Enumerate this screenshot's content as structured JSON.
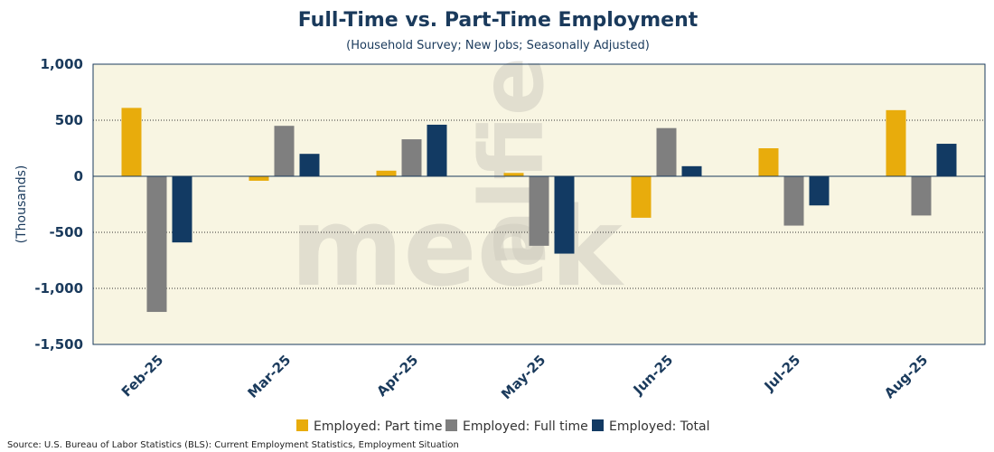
{
  "watermark": "alfie meek",
  "chart_data": {
    "type": "bar",
    "title": "Full-Time vs. Part-Time Employment",
    "subtitle": "(Household Survey; New Jobs; Seasonally Adjusted)",
    "xlabel": "",
    "ylabel": "(Thousands)",
    "ylim": [
      -1500,
      1000
    ],
    "yticks": [
      1000,
      500,
      0,
      -500,
      -1000,
      -1500
    ],
    "ytick_labels": [
      "1,000",
      "500",
      "0",
      "-500",
      "-1,000",
      "-1,500"
    ],
    "categories": [
      "Feb-25",
      "Mar-25",
      "Apr-25",
      "May-25",
      "Jun-25",
      "Jul-25",
      "Aug-25"
    ],
    "series": [
      {
        "name": "Employed: Part time",
        "color": "#e8ac0c",
        "values": [
          610,
          -40,
          50,
          30,
          -370,
          250,
          590
        ]
      },
      {
        "name": "Employed: Full time",
        "color": "#7f7f7f",
        "values": [
          -1210,
          450,
          330,
          -620,
          430,
          -440,
          -350
        ]
      },
      {
        "name": "Employed: Total",
        "color": "#123a63",
        "values": [
          -590,
          200,
          460,
          -690,
          90,
          -260,
          290
        ]
      }
    ],
    "grid": "horizontal dotted",
    "legend_position": "bottom",
    "plot_background": "#f8f5e2",
    "axis_color": "#1a3a5c"
  },
  "source": "Source: U.S. Bureau of Labor Statistics (BLS): Current Employment Statistics, Employment Situation"
}
